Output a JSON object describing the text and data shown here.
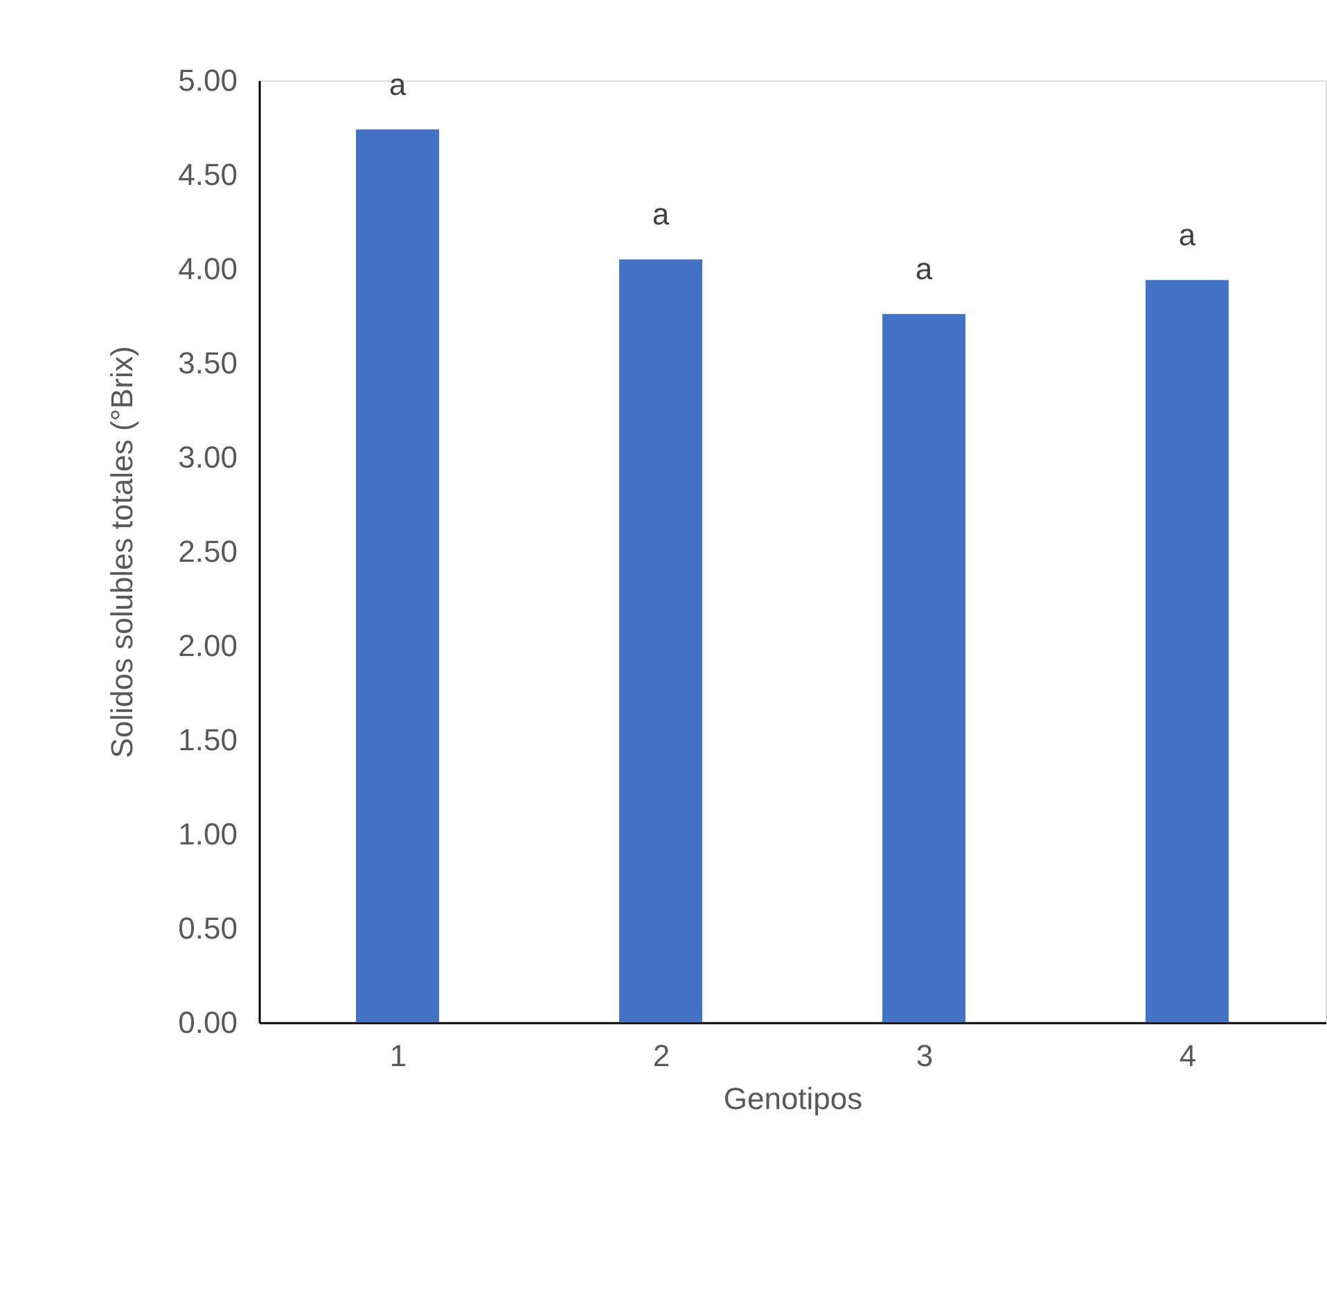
{
  "chart_data": {
    "type": "bar",
    "xlabel": "Genotipos",
    "ylabel": "Solidos  solubles totales (°Brix)",
    "categories": [
      "1",
      "2",
      "3",
      "4"
    ],
    "values": [
      4.74,
      4.05,
      3.76,
      3.94
    ],
    "color": "#4472c4",
    "ylim": [
      0,
      5
    ],
    "yticks": [
      {
        "value": 0,
        "label": "0.00"
      },
      {
        "value": 0.5,
        "label": "0.50"
      },
      {
        "value": 1,
        "label": "1.00"
      },
      {
        "value": 1.5,
        "label": "1.50"
      },
      {
        "value": 2,
        "label": "2.00"
      },
      {
        "value": 2.5,
        "label": "2.50"
      },
      {
        "value": 3,
        "label": "3.00"
      },
      {
        "value": 3.5,
        "label": "3.50"
      },
      {
        "value": 4,
        "label": "4.00"
      },
      {
        "value": 4.5,
        "label": "4.50"
      },
      {
        "value": 5,
        "label": "5.00"
      }
    ],
    "annotations": [
      {
        "text": "a",
        "x": "1",
        "y": 4.74
      },
      {
        "text": "a",
        "x": "2",
        "y": 4.05
      },
      {
        "text": "a",
        "x": "3",
        "y": 3.76
      },
      {
        "text": "a",
        "x": "4",
        "y": 3.94
      }
    ],
    "grid": false
  }
}
